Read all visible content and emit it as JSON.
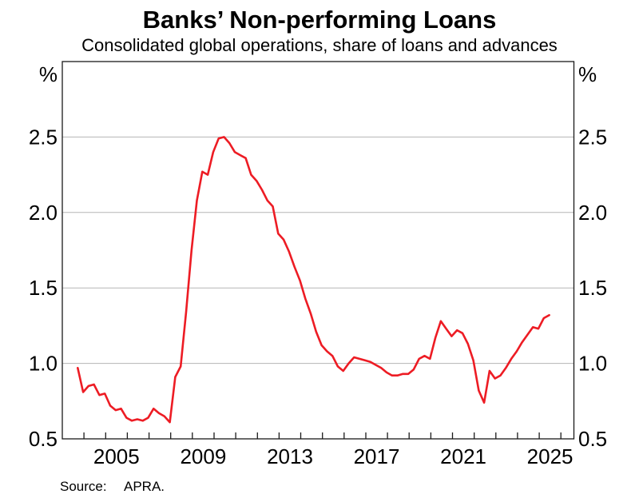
{
  "chart_data": {
    "type": "line",
    "title": "Banks’ Non-performing Loans",
    "subtitle": "Consolidated global operations, share of loans and advances",
    "unit_left": "%",
    "unit_right": "%",
    "y_axis": {
      "range": [
        0.5,
        3.0
      ],
      "tick_labels": [
        "0.5",
        "1.0",
        "1.5",
        "2.0",
        "2.5"
      ],
      "tick_values": [
        0.5,
        1.0,
        1.5,
        2.0,
        2.5
      ],
      "gridline_values": [
        1.0,
        1.5,
        2.0,
        2.5
      ],
      "labels_both_sides": true,
      "grid_on": true
    },
    "x_axis": {
      "range_years": [
        2003.0,
        2026.6
      ],
      "minor_tick_years_start": 2004,
      "minor_tick_years_end": 2026,
      "label_years": [
        "2005",
        "2009",
        "2013",
        "2017",
        "2021",
        "2025"
      ]
    },
    "series": [
      {
        "name": "Banks' non-performing loans (share of loans and advances)",
        "frequency": "quarterly",
        "periods": [
          "2003Q3",
          "2003Q4",
          "2004Q1",
          "2004Q2",
          "2004Q3",
          "2004Q4",
          "2005Q1",
          "2005Q2",
          "2005Q3",
          "2005Q4",
          "2006Q1",
          "2006Q2",
          "2006Q3",
          "2006Q4",
          "2007Q1",
          "2007Q2",
          "2007Q3",
          "2007Q4",
          "2008Q1",
          "2008Q2",
          "2008Q3",
          "2008Q4",
          "2009Q1",
          "2009Q2",
          "2009Q3",
          "2009Q4",
          "2010Q1",
          "2010Q2",
          "2010Q3",
          "2010Q4",
          "2011Q1",
          "2011Q2",
          "2011Q3",
          "2011Q4",
          "2012Q1",
          "2012Q2",
          "2012Q3",
          "2012Q4",
          "2013Q1",
          "2013Q2",
          "2013Q3",
          "2013Q4",
          "2014Q1",
          "2014Q2",
          "2014Q3",
          "2014Q4",
          "2015Q1",
          "2015Q2",
          "2015Q3",
          "2015Q4",
          "2016Q1",
          "2016Q2",
          "2016Q3",
          "2016Q4",
          "2017Q1",
          "2017Q2",
          "2017Q3",
          "2017Q4",
          "2018Q1",
          "2018Q2",
          "2018Q3",
          "2018Q4",
          "2019Q1",
          "2019Q2",
          "2019Q3",
          "2019Q4",
          "2020Q1",
          "2020Q2",
          "2020Q3",
          "2020Q4",
          "2021Q1",
          "2021Q2",
          "2021Q3",
          "2021Q4",
          "2022Q1",
          "2022Q2",
          "2022Q3",
          "2022Q4",
          "2023Q1",
          "2023Q2",
          "2023Q3",
          "2023Q4",
          "2024Q1",
          "2024Q2",
          "2024Q3",
          "2024Q4",
          "2025Q1",
          "2025Q2"
        ],
        "values": [
          0.97,
          0.81,
          0.85,
          0.86,
          0.79,
          0.8,
          0.72,
          0.69,
          0.7,
          0.64,
          0.62,
          0.63,
          0.62,
          0.64,
          0.7,
          0.67,
          0.65,
          0.61,
          0.91,
          0.98,
          1.34,
          1.75,
          2.08,
          2.27,
          2.25,
          2.4,
          2.49,
          2.5,
          2.46,
          2.4,
          2.38,
          2.36,
          2.25,
          2.21,
          2.15,
          2.08,
          2.04,
          1.86,
          1.82,
          1.74,
          1.64,
          1.55,
          1.43,
          1.33,
          1.21,
          1.12,
          1.08,
          1.05,
          0.98,
          0.95,
          1.0,
          1.04,
          1.03,
          1.02,
          1.01,
          0.99,
          0.97,
          0.94,
          0.92,
          0.92,
          0.93,
          0.93,
          0.96,
          1.03,
          1.05,
          1.03,
          1.17,
          1.28,
          1.23,
          1.18,
          1.22,
          1.2,
          1.13,
          1.02,
          0.82,
          0.74,
          0.95,
          0.9,
          0.92,
          0.97,
          1.03,
          1.08,
          1.14,
          1.19,
          1.24,
          1.23,
          1.3,
          1.32
        ],
        "line_color": "#ED1C24"
      }
    ],
    "colors": {
      "line": "#ED1C24",
      "grid": "#B5B5B5",
      "frame": "#1A1A1A",
      "text": "#000000",
      "background": "#FFFFFF"
    }
  },
  "footer": {
    "source_label": "Source:",
    "source_value": "APRA."
  }
}
